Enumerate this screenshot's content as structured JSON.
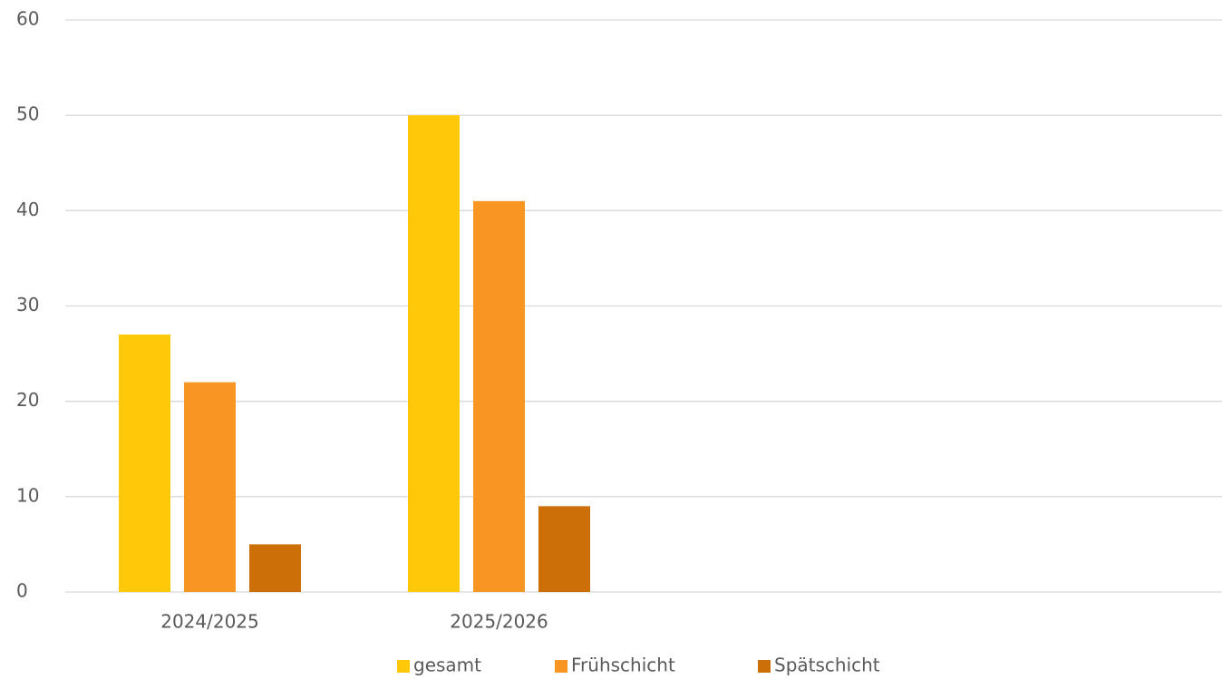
{
  "chart_data": {
    "type": "bar",
    "categories": [
      "2024/2025",
      "2025/2026",
      null,
      null
    ],
    "series": [
      {
        "name": "gesamt",
        "color": "#ffc90a",
        "values": [
          27,
          50,
          null,
          null
        ]
      },
      {
        "name": "Frühschicht",
        "color": "#f79622",
        "values": [
          22,
          41,
          null,
          null
        ]
      },
      {
        "name": "Spätschicht",
        "color": "#cc6f08",
        "values": [
          5,
          9,
          null,
          null
        ]
      }
    ],
    "ylim": [
      0,
      60
    ],
    "yticks": [
      0,
      10,
      20,
      30,
      40,
      50,
      60
    ],
    "grid": true,
    "legend": "bottom"
  }
}
